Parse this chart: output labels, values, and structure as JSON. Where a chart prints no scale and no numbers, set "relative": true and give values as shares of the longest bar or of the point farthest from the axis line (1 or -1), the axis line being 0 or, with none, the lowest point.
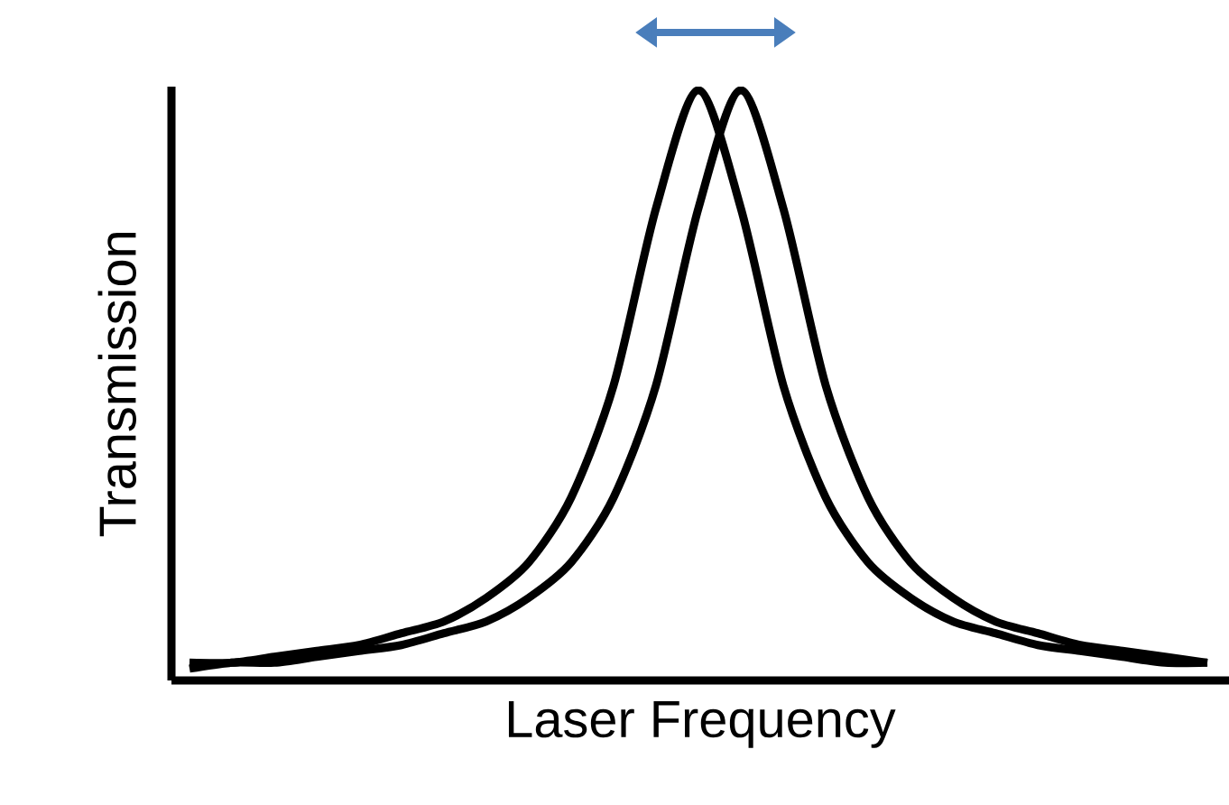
{
  "chart_data": {
    "type": "line",
    "relative": true,
    "xlabel": "Laser Frequency",
    "ylabel": "Transmission",
    "categories": [
      null,
      null,
      null,
      null,
      null,
      null,
      null,
      null,
      null,
      null,
      null,
      null,
      null,
      null,
      null,
      null,
      null,
      null,
      null,
      null,
      null,
      null,
      null,
      null,
      null
    ],
    "series": [
      {
        "color": "#000000",
        "values": [
          0.03,
          0.03,
          0.04,
          0.05,
          0.06,
          0.08,
          0.1,
          0.14,
          0.2,
          0.31,
          0.5,
          0.8,
          1,
          0.8,
          0.5,
          0.31,
          0.2,
          0.14,
          0.1,
          0.08,
          0.06,
          0.05,
          0.04,
          0.03,
          0.03
        ]
      },
      {
        "color": "#000000",
        "values": [
          0.02,
          0.03,
          0.03,
          0.04,
          0.05,
          0.06,
          0.08,
          0.1,
          0.14,
          0.2,
          0.31,
          0.5,
          0.8,
          1,
          0.8,
          0.5,
          0.31,
          0.2,
          0.14,
          0.1,
          0.08,
          0.06,
          0.05,
          0.04,
          0.03
        ]
      }
    ]
  }
}
